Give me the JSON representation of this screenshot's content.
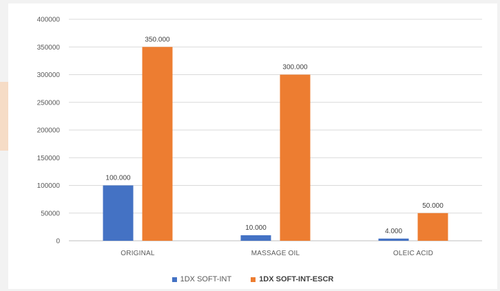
{
  "chart_data": {
    "type": "bar",
    "categories": [
      "ORIGINAL",
      "MASSAGE OIL",
      "OLEIC ACID"
    ],
    "series": [
      {
        "name": "1DX SOFT-INT",
        "values": [
          100000,
          10000,
          4000
        ],
        "labels": [
          "100.000",
          "10.000",
          "4.000"
        ],
        "color": "#4472c4"
      },
      {
        "name": "1DX SOFT-INT-ESCR",
        "values": [
          350000,
          300000,
          50000
        ],
        "labels": [
          "350.000",
          "300.000",
          "50.000"
        ],
        "color": "#ed7d31"
      }
    ],
    "y_ticks": [
      "0",
      "50000",
      "100000",
      "150000",
      "200000",
      "250000",
      "300000",
      "350000",
      "400000"
    ],
    "ylim": [
      0,
      400000
    ],
    "grid": true,
    "legend_position": "bottom",
    "title": "",
    "xlabel": "",
    "ylabel": ""
  }
}
